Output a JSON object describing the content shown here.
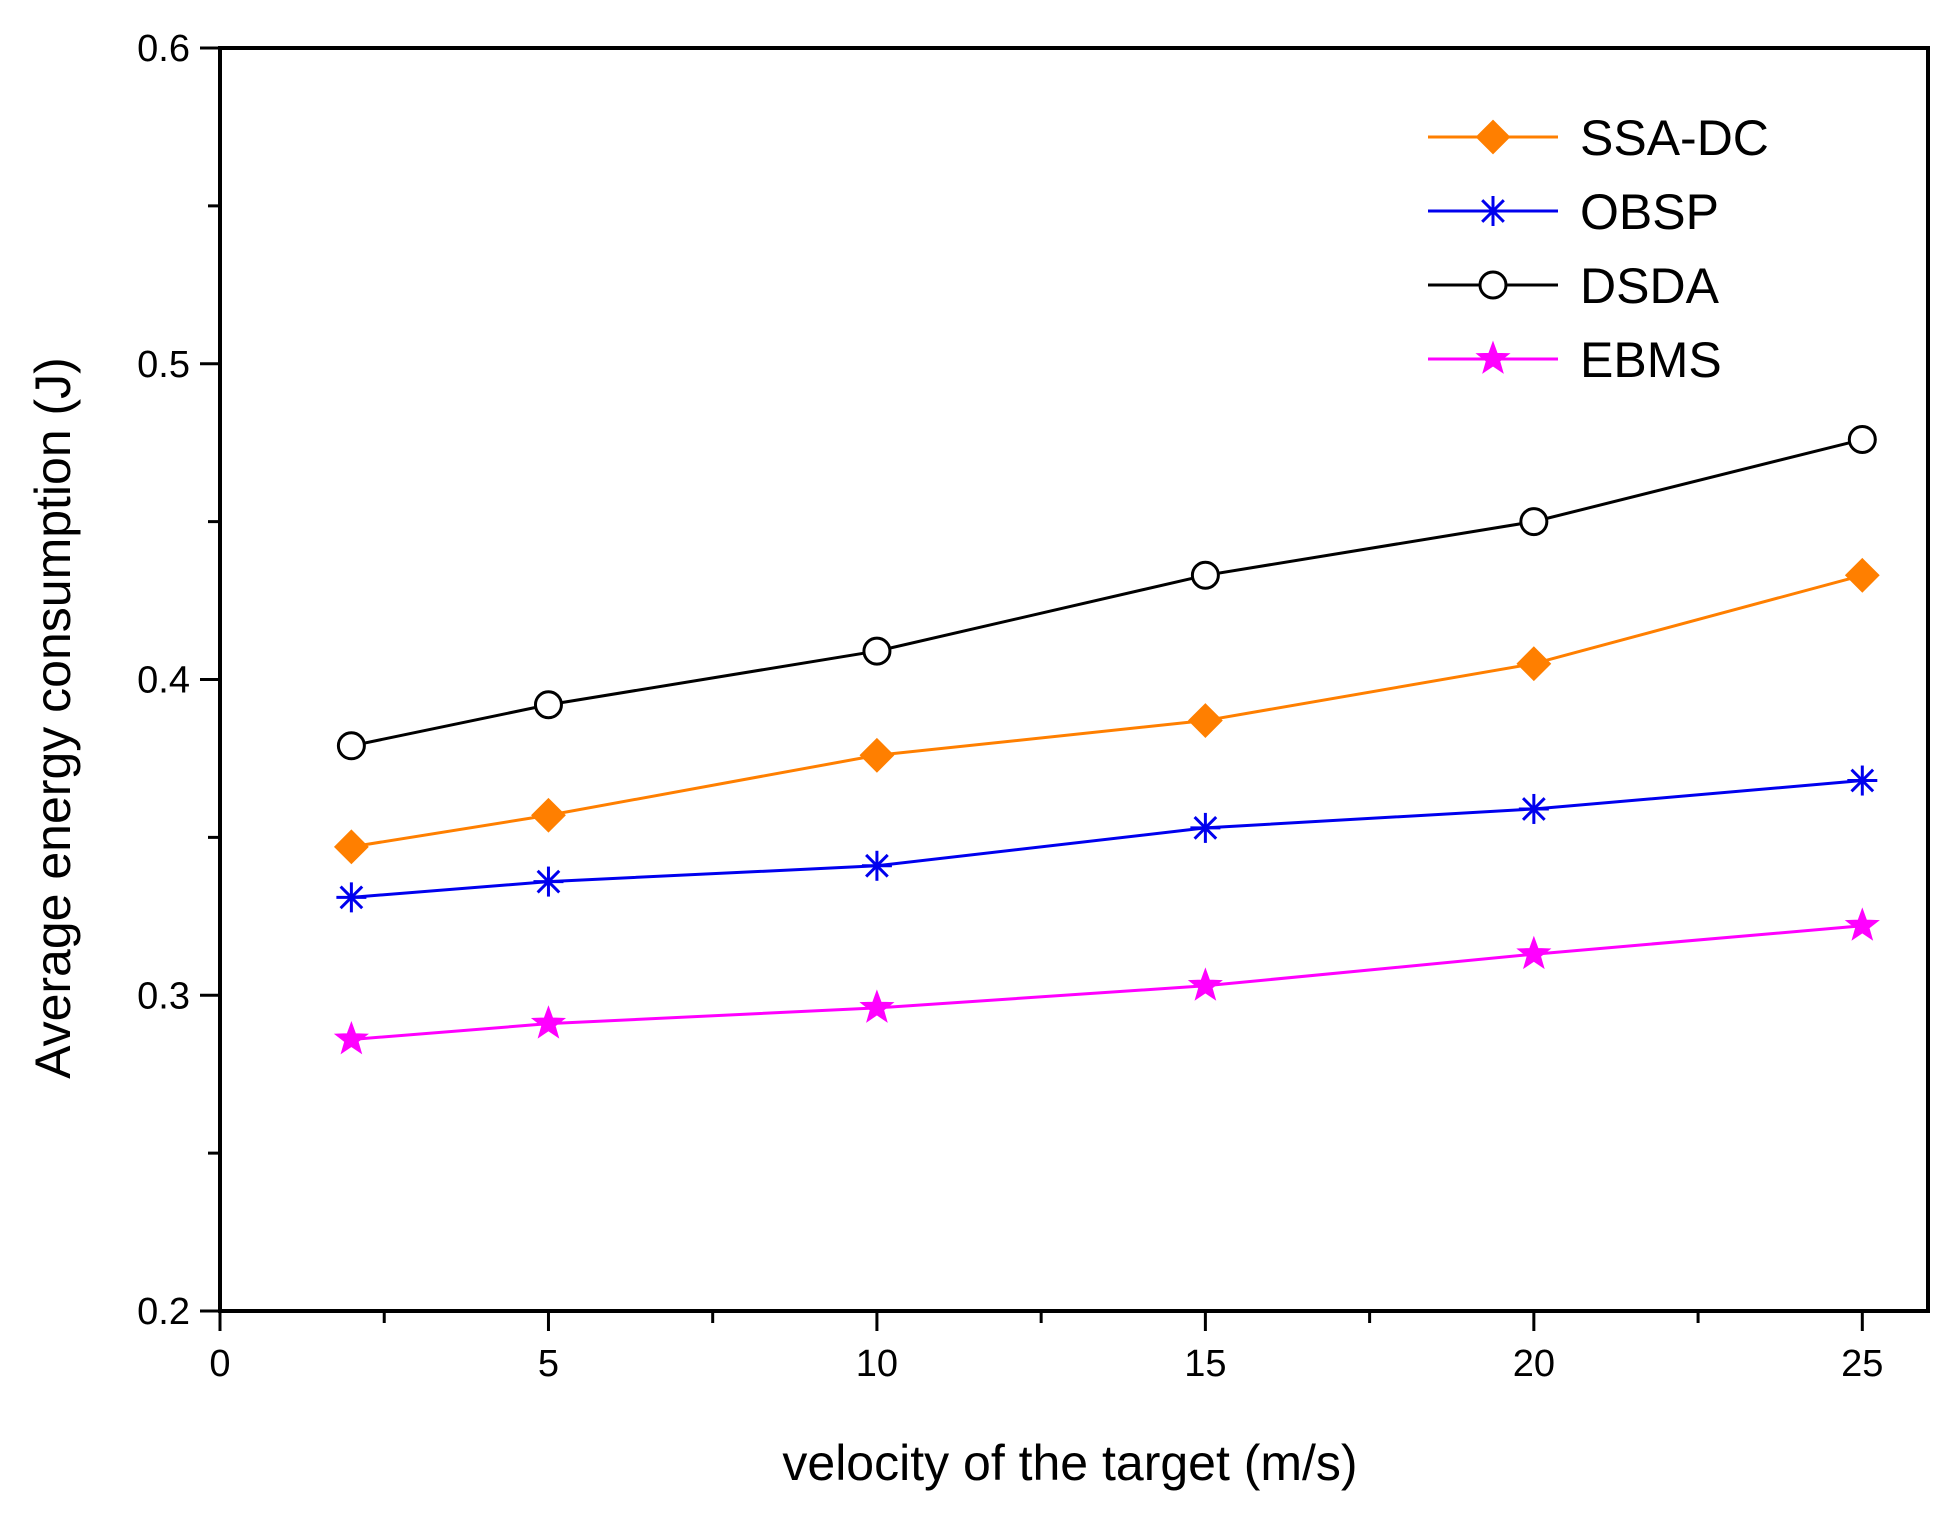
{
  "chart_data": {
    "type": "line",
    "title": "",
    "xlabel": "velocity of the target (m/s)",
    "ylabel": "Average energy consumption (J)",
    "xlim": [
      0,
      26
    ],
    "ylim": [
      0.2,
      0.6
    ],
    "x_ticks": [
      0,
      5,
      10,
      15,
      20,
      25
    ],
    "x_tick_labels": [
      "0",
      "5",
      "10",
      "15",
      "20",
      "25"
    ],
    "y_ticks": [
      0.2,
      0.3,
      0.4,
      0.5,
      0.6
    ],
    "y_tick_labels": [
      "0.2",
      "0.3",
      "0.4",
      "0.5",
      "0.6"
    ],
    "grid": false,
    "legend_position": "top-right",
    "x": [
      2,
      5,
      10,
      15,
      20,
      25
    ],
    "series": [
      {
        "name": "SSA-DC",
        "marker": "diamond",
        "color": "#ff7f00",
        "values": [
          0.347,
          0.357,
          0.376,
          0.387,
          0.405,
          0.433
        ]
      },
      {
        "name": "OBSP",
        "marker": "asterisk",
        "color": "#0000ee",
        "values": [
          0.331,
          0.336,
          0.341,
          0.353,
          0.359,
          0.368
        ]
      },
      {
        "name": "DSDA",
        "marker": "circle",
        "color": "#000000",
        "values": [
          0.379,
          0.392,
          0.409,
          0.433,
          0.45,
          0.476
        ]
      },
      {
        "name": "EBMS",
        "marker": "star",
        "color": "#ff00ff",
        "values": [
          0.286,
          0.291,
          0.296,
          0.303,
          0.313,
          0.322
        ]
      }
    ]
  }
}
